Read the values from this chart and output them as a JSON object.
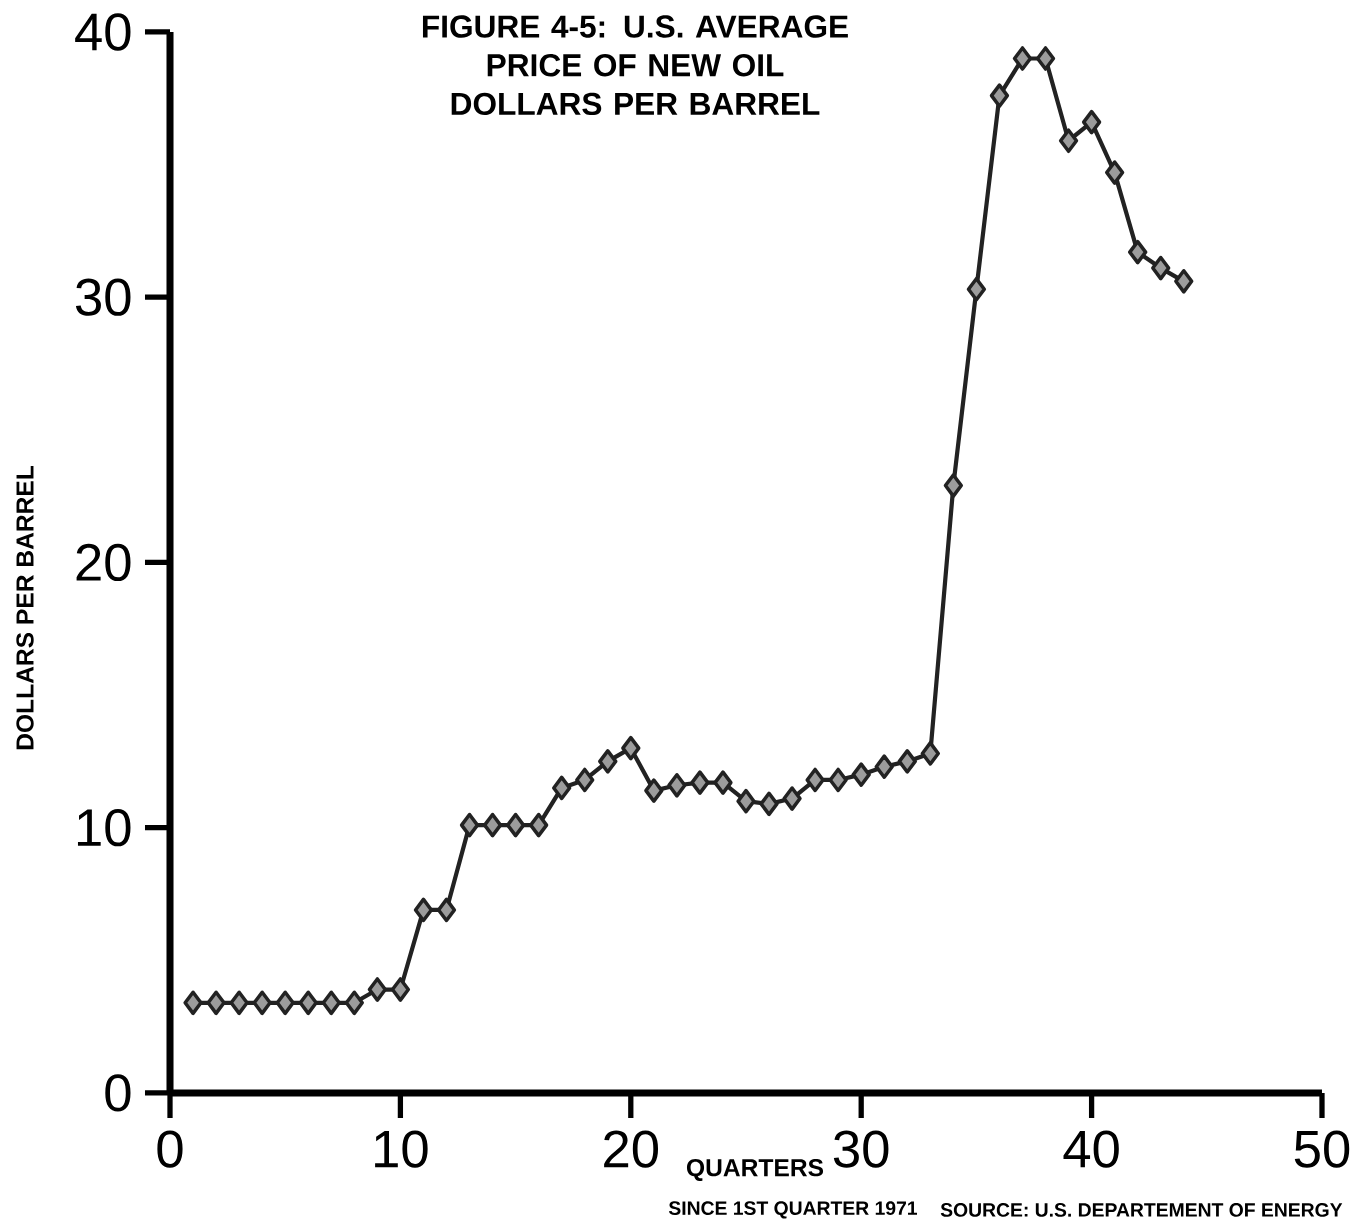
{
  "chart_data": {
    "type": "line",
    "title": "FIGURE 4-5: U.S. AVERAGE PRICE OF NEW OIL",
    "subtitle": "DOLLARS PER BARREL",
    "xlabel": "QUARTERS",
    "ylabel": "DOLLARS PER BARREL",
    "annotations": [
      "SINCE 1ST QUARTER 1971",
      "SOURCE: U.S. DEPARTEMENT OF ENERGY"
    ],
    "x": [
      1,
      2,
      3,
      4,
      5,
      6,
      7,
      8,
      9,
      10,
      11,
      12,
      13,
      14,
      15,
      16,
      17,
      18,
      19,
      20,
      21,
      22,
      23,
      24,
      25,
      26,
      27,
      28,
      29,
      30,
      31,
      32,
      33,
      34,
      35,
      36,
      37,
      38,
      39,
      40,
      41,
      42,
      43,
      44
    ],
    "values": [
      3.4,
      3.4,
      3.4,
      3.4,
      3.4,
      3.4,
      3.4,
      3.4,
      3.9,
      3.9,
      6.9,
      6.9,
      10.1,
      10.1,
      10.1,
      10.1,
      11.5,
      11.8,
      12.5,
      13.0,
      11.4,
      11.6,
      11.7,
      11.7,
      11.0,
      10.9,
      11.1,
      11.8,
      11.8,
      12.0,
      12.3,
      12.5,
      12.8,
      22.9,
      30.3,
      37.6,
      39.0,
      39.0,
      35.9,
      36.6,
      34.7,
      31.7,
      31.1,
      30.6
    ],
    "color": "#222222",
    "marker": "diamond",
    "xlim": [
      0,
      50
    ],
    "ylim": [
      0,
      40
    ],
    "xticks": [
      0,
      10,
      20,
      30,
      40,
      50
    ],
    "yticks": [
      0,
      10,
      20,
      30,
      40
    ]
  }
}
